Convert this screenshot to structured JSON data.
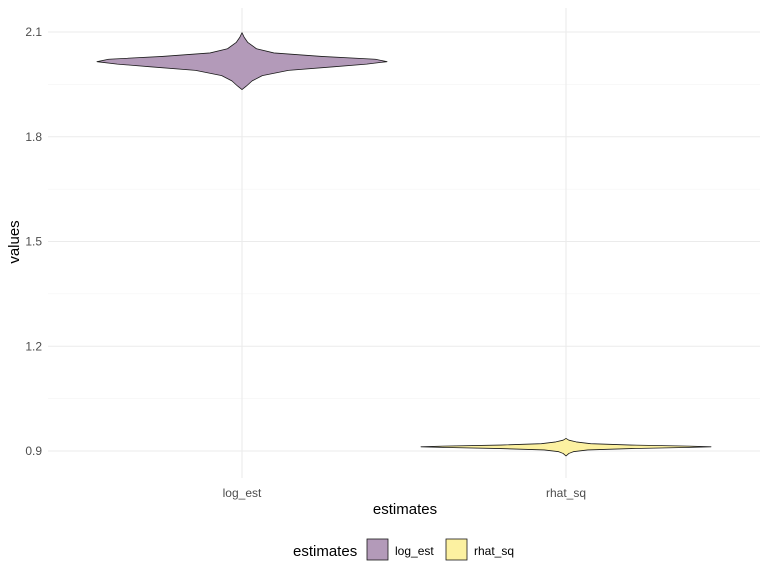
{
  "chart_data": {
    "type": "violin",
    "xlabel": "estimates",
    "ylabel": "values",
    "ylim": [
      0.85,
      2.15
    ],
    "y_ticks": [
      0.9,
      1.2,
      1.5,
      1.8,
      2.1
    ],
    "y_tick_labels": [
      "0.9",
      "1.2",
      "1.5",
      "1.8",
      "2.1"
    ],
    "categories": [
      "log_est",
      "rhat_sq"
    ],
    "grid": true,
    "legend": {
      "title": "estimates",
      "position": "bottom",
      "entries": [
        "log_est",
        "rhat_sq"
      ]
    },
    "series": [
      {
        "name": "log_est",
        "color": "#b39ab9",
        "density": [
          [
            1.935,
            0.0
          ],
          [
            1.945,
            0.03
          ],
          [
            1.96,
            0.07
          ],
          [
            1.975,
            0.14
          ],
          [
            1.99,
            0.32
          ],
          [
            2.0,
            0.62
          ],
          [
            2.008,
            0.86
          ],
          [
            2.015,
            1.0
          ],
          [
            2.022,
            0.92
          ],
          [
            2.03,
            0.55
          ],
          [
            2.04,
            0.22
          ],
          [
            2.052,
            0.1
          ],
          [
            2.07,
            0.04
          ],
          [
            2.085,
            0.015
          ],
          [
            2.098,
            0.0
          ]
        ]
      },
      {
        "name": "rhat_sq",
        "color": "#fcf1a1",
        "density": [
          [
            0.886,
            0.0
          ],
          [
            0.893,
            0.02
          ],
          [
            0.898,
            0.05
          ],
          [
            0.903,
            0.15
          ],
          [
            0.907,
            0.45
          ],
          [
            0.91,
            0.82
          ],
          [
            0.912,
            1.0
          ],
          [
            0.914,
            0.85
          ],
          [
            0.917,
            0.45
          ],
          [
            0.921,
            0.17
          ],
          [
            0.926,
            0.07
          ],
          [
            0.931,
            0.02
          ],
          [
            0.936,
            0.0
          ]
        ]
      }
    ]
  }
}
